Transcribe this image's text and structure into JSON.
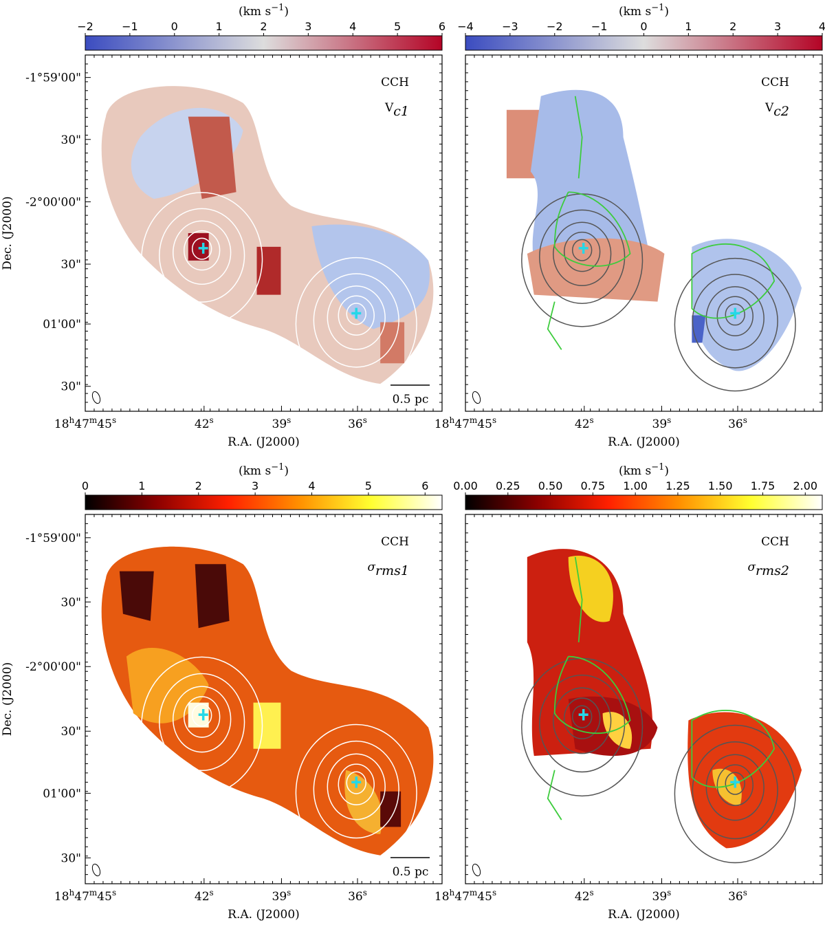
{
  "chart_data": [
    {
      "type": "map",
      "panel": [
        "CCH",
        "V",
        "c1"
      ],
      "colorbar_label": [
        "(km s",
        "−1",
        ")"
      ],
      "colormap": [
        "#3b4cc0",
        "#dddddd",
        "#b40426"
      ],
      "clim": [
        -2,
        6
      ],
      "cticks": [
        {
          "value": -2,
          "label": "−2"
        },
        {
          "value": -1,
          "label": "−1"
        },
        0,
        1,
        2,
        3,
        4,
        5,
        6
      ],
      "scale_bar": "0.5 pc",
      "xlabel": "R.A. (J2000)",
      "ylabel": "Dec. (J2000)",
      "xticks": [
        [
          "18",
          "h",
          "47",
          "m",
          "45",
          "s"
        ],
        [
          "42",
          "s"
        ],
        [
          "39",
          "s"
        ],
        [
          "36",
          "s"
        ]
      ],
      "yticks": [
        "-1°59'00\"",
        "30\"",
        "-2°00'00\"",
        "30\"",
        "01'00\"",
        "30\""
      ]
    },
    {
      "type": "map",
      "panel": [
        "CCH",
        "V",
        "c2"
      ],
      "colorbar_label": [
        "(km s",
        "−1",
        ")"
      ],
      "colormap": [
        "#3b4cc0",
        "#dddddd",
        "#b40426"
      ],
      "clim": [
        -4,
        4
      ],
      "cticks": [
        {
          "value": -4,
          "label": "−4"
        },
        {
          "value": -3,
          "label": "−3"
        },
        {
          "value": -2,
          "label": "−2"
        },
        {
          "value": -1,
          "label": "−1"
        },
        0,
        1,
        2,
        3,
        4
      ],
      "xlabel": "R.A. (J2000)",
      "xticks": [
        [
          "18",
          "h",
          "47",
          "m",
          "45",
          "s"
        ],
        [
          "42",
          "s"
        ],
        [
          "39",
          "s"
        ],
        [
          "36",
          "s"
        ]
      ]
    },
    {
      "type": "map",
      "panel": [
        "CCH",
        "σ",
        "rms1"
      ],
      "colorbar_label": [
        "(km s",
        "−1",
        ")"
      ],
      "colormap": [
        "#000000",
        "#8b0000",
        "#ff2000",
        "#ff9000",
        "#ffff30",
        "#ffffff"
      ],
      "clim": [
        0,
        6.3
      ],
      "cticks": [
        0,
        1,
        2,
        3,
        4,
        5,
        6
      ],
      "scale_bar": "0.5 pc",
      "xlabel": "R.A. (J2000)",
      "ylabel": "Dec. (J2000)",
      "xticks": [
        [
          "18",
          "h",
          "47",
          "m",
          "45",
          "s"
        ],
        [
          "42",
          "s"
        ],
        [
          "39",
          "s"
        ],
        [
          "36",
          "s"
        ]
      ],
      "yticks": [
        "-1°59'00\"",
        "30\"",
        "-2°00'00\"",
        "30\"",
        "01'00\"",
        "30\""
      ]
    },
    {
      "type": "map",
      "panel": [
        "CCH",
        "σ",
        "rms2"
      ],
      "colorbar_label": [
        "(km s",
        "−1",
        ")"
      ],
      "colormap": [
        "#000000",
        "#8b0000",
        "#ff2000",
        "#ff9000",
        "#ffff30",
        "#ffffff"
      ],
      "clim": [
        0,
        2.1
      ],
      "cticks": [
        {
          "value": 0,
          "label": "0.00"
        },
        {
          "value": 0.25,
          "label": "0.25"
        },
        {
          "value": 0.5,
          "label": "0.50"
        },
        {
          "value": 0.75,
          "label": "0.75"
        },
        {
          "value": 1,
          "label": "1.00"
        },
        {
          "value": 1.25,
          "label": "1.25"
        },
        {
          "value": 1.5,
          "label": "1.50"
        },
        {
          "value": 1.75,
          "label": "1.75"
        },
        {
          "value": 2,
          "label": "2.00"
        }
      ],
      "xlabel": "R.A. (J2000)",
      "xticks": [
        [
          "18",
          "h",
          "47",
          "m",
          "45",
          "s"
        ],
        [
          "42",
          "s"
        ],
        [
          "39",
          "s"
        ],
        [
          "36",
          "s"
        ]
      ]
    }
  ]
}
